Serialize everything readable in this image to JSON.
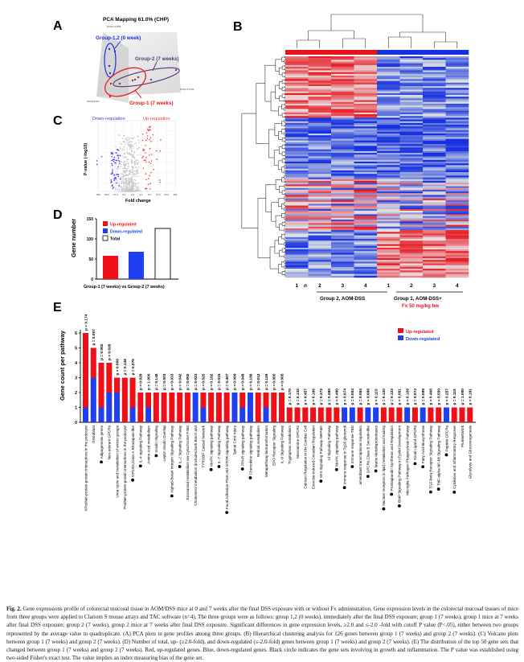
{
  "panel_letters": {
    "a": "A",
    "b": "B",
    "c": "C",
    "d": "D",
    "e": "E"
  },
  "panel_a": {
    "title": "PCA Mapping 61.0% (CHP)",
    "axis_pca1": "PCA1 37.4%",
    "axis_pca2": "PCA2 13.8%",
    "axis_pca3": "PCA3 9.8%",
    "group_0wk": "Group-1,2 (0 week)",
    "group_2": "Group-2 (7 weeks)",
    "group_1": "Group-1 (7 weeks)",
    "colors": {
      "group_0wk": "#1f2fe0",
      "group_2": "#5a3a7a",
      "group_1": "#e8141c"
    }
  },
  "panel_c": {
    "down_label": "Down-regulation",
    "up_label": "Up-regulation",
    "ylabel": "P-value (-log10)",
    "xlabel": "Fold change",
    "xticks": [
      "-256",
      "-66.3",
      "-27.9",
      "-6.2",
      "-3.0",
      "3.0",
      "6.2",
      "27.9",
      "64.3",
      "256"
    ]
  },
  "panel_b": {
    "n_label": "n",
    "columns": [
      "1",
      "2",
      "3",
      "4",
      "1",
      "2",
      "3",
      "4"
    ],
    "group2_label": "Group 2, AOM-DSS",
    "group1_label": "Group 1, AOM-DSS+",
    "group1_sublabel": "Fx 50 mg/kg bw",
    "colors": {
      "up": "#e8141c",
      "down": "#1430e0"
    }
  },
  "chart_data": [
    {
      "type": "bar",
      "panel": "D",
      "categories": [
        "Up-regulated",
        "Down-regulated",
        "Total"
      ],
      "values": [
        58,
        68,
        126
      ],
      "colors": [
        "#f00f17",
        "#1f3ff0",
        "#ffffff"
      ],
      "ylabel": "Gene number",
      "xlabel": "Group-1 (7 weeks) vs Group-2 (7 weeks)",
      "ylim": [
        0,
        150
      ],
      "yticks": [
        "0",
        "50",
        "100",
        "150"
      ],
      "legend": [
        "Up-regulated",
        "Down-regulated",
        "Total"
      ],
      "legend_position": "top-left"
    },
    {
      "type": "bar",
      "stacked": true,
      "panel": "E",
      "ylabel": "Gene count per pathway",
      "ylim": [
        0,
        6
      ],
      "yticks": [
        "0",
        "1",
        "2",
        "3",
        "4",
        "5",
        "6"
      ],
      "legend": [
        "Up-regulated",
        "Down-regulated"
      ],
      "legend_position": "top-right",
      "colors": {
        "up": "#f00f17",
        "down": "#1f3ff0"
      },
      "bars": [
        {
          "label": "XPodNet-protein-protein interactions in the podocyte",
          "up": 5,
          "down": 1,
          "p": "p = 0.174",
          "dot": false
        },
        {
          "label": "Osteoblast",
          "up": 2,
          "down": 3,
          "p": "p = 0.007",
          "dot": false
        },
        {
          "label": "Adipogenesis genes",
          "up": 3,
          "down": 1,
          "p": "p = 0.002",
          "dot": true
        },
        {
          "label": "Non-odorant GPCRs",
          "up": 2,
          "down": 2,
          "p": "p = 0.028",
          "dot": false
        },
        {
          "label": "Urea cycle and metabolism of amino groups",
          "up": 1,
          "down": 2,
          "p": "p = 0.000",
          "dot": false
        },
        {
          "label": "PodNet-protein-protein interactions in the podocyte",
          "up": 3,
          "down": 0,
          "p": "p = 0.148",
          "dot": false
        },
        {
          "label": "GPCRs,Class A Rhodopsin-like",
          "up": 2,
          "down": 1,
          "p": "p = 0.076",
          "dot": true
        },
        {
          "label": "IL-4 signaling Pathway",
          "up": 2,
          "down": 0,
          "p": "p = 0.028",
          "dot": true
        },
        {
          "label": "Amino Acid metabolism",
          "up": 1,
          "down": 1,
          "p": "p = 1.000",
          "dot": false
        },
        {
          "label": "Insulin Signaling",
          "up": 2,
          "down": 0,
          "p": "p = 0.148",
          "dot": true
        },
        {
          "label": "Leptin Insulin Overlap",
          "up": 2,
          "down": 0,
          "p": "p = 0.003",
          "dot": false
        },
        {
          "label": "Alpha6-Beta4 Integrin Signaling Pathway",
          "up": 2,
          "down": 0,
          "p": "p = 0.033",
          "dot": true
        },
        {
          "label": "IL-2 Signaling Pathway",
          "up": 2,
          "down": 0,
          "p": "p = 0.042",
          "dot": true
        },
        {
          "label": "Eicosanoid metabolism via Cytochrome P450",
          "up": 2,
          "down": 0,
          "p": "p = 0.002",
          "dot": false
        },
        {
          "label": "Cholesterol metabolism (includes both Bloch and",
          "up": 0,
          "down": 2,
          "p": "p = 0.023",
          "dot": false
        },
        {
          "label": "TYROBP Causal Network",
          "up": 1,
          "down": 1,
          "p": "p = 0.025",
          "dot": false
        },
        {
          "label": "MAPK signaling pathway",
          "up": 2,
          "down": 0,
          "p": "p = 0.162",
          "dot": true
        },
        {
          "label": "IL-7 Signaling Pathway",
          "up": 2,
          "down": 0,
          "p": "p = 0.015",
          "dot": true
        },
        {
          "label": "Focal Adhesion-PI3K-Akt-mTOR-signaling pathway",
          "up": 2,
          "down": 0,
          "p": "p = 0.407",
          "dot": true
        },
        {
          "label": "Spinal Cord Injury",
          "up": 0,
          "down": 2,
          "p": "p = 0.069",
          "dot": false
        },
        {
          "label": "PPAR signaling pathway",
          "up": 1,
          "down": 1,
          "p": "p = 0.048",
          "dot": true
        },
        {
          "label": "Chemokine signaling pathway",
          "up": 0,
          "down": 2,
          "p": "p = 0.186",
          "dot": true
        },
        {
          "label": "Retinol metabolism",
          "up": 2,
          "down": 0,
          "p": "p = 0.012",
          "dot": false
        },
        {
          "label": "Metapathway biotransformation",
          "up": 1,
          "down": 1,
          "p": "p = 0.126",
          "dot": false
        },
        {
          "label": "EPO Receptor Signaling",
          "up": 2,
          "down": 0,
          "p": "p = 0.005",
          "dot": false
        },
        {
          "label": "IL-9 Signaling Pathway",
          "up": 2,
          "down": 0,
          "p": "p = 0.005",
          "dot": false
        },
        {
          "label": "Tryptophan metabolism",
          "up": 1,
          "down": 0,
          "p": "p = 0.170",
          "dot": false
        },
        {
          "label": "Monoamine GPCRs",
          "up": 1,
          "down": 0,
          "p": "p = 0.132",
          "dot": false
        },
        {
          "label": "Calcium Regulation in the Cardiac Cell",
          "up": 1,
          "down": 0,
          "p": "p = 0.457",
          "dot": false
        },
        {
          "label": "Exercise-induced Circadian Regulation",
          "up": 1,
          "down": 0,
          "p": "p = 0.186",
          "dot": false
        },
        {
          "label": "Wnt Signaling Pathway NetPath",
          "up": 1,
          "down": 0,
          "p": "p = 0.372",
          "dot": true
        },
        {
          "label": "Id Signaling Pathway",
          "up": 1,
          "down": 0,
          "p": "p = 0.280",
          "dot": false
        },
        {
          "label": "MAPK signaling pathway",
          "up": 1,
          "down": 0,
          "p": "p = 0.490",
          "dot": true
        },
        {
          "label": "Immune response in Tg26 glomeruli",
          "up": 0,
          "down": 1,
          "p": "p = 0.074",
          "dot": true
        },
        {
          "label": "Immune response TBD",
          "up": 0,
          "down": 1,
          "p": "p = 0.054",
          "dot": true
        },
        {
          "label": "ameloblast transcriptional regulation",
          "up": 1,
          "down": 0,
          "p": "p = 0.084",
          "dot": false
        },
        {
          "label": "GPCRs,Class B Secretin-like",
          "up": 0,
          "down": 1,
          "p": "p = 0.089",
          "dot": true
        },
        {
          "label": "Matrix Metalloproteinases",
          "up": 0,
          "down": 1,
          "p": "p = 0.115",
          "dot": true
        },
        {
          "label": "Nuclear receptors in lipid metabolism and toxicity",
          "up": 1,
          "down": 0,
          "p": "p = 0.120",
          "dot": true
        },
        {
          "label": "Prostaglandin Synthesis and Regulation",
          "up": 1,
          "down": 0,
          "p": "p = 0.123",
          "dot": true
        },
        {
          "label": "BMP Signaling Pathway in Eyelid Development",
          "up": 1,
          "down": 0,
          "p": "p = 0.081",
          "dot": true
        },
        {
          "label": "Microglia Pathogen Phagocytosis Pathway",
          "up": 0,
          "down": 1,
          "p": "p = 0.158",
          "dot": false
        },
        {
          "label": "Small Ligand GPCRs",
          "up": 1,
          "down": 0,
          "p": "p = 0.074",
          "dot": true
        },
        {
          "label": "Fatty Acid Biosynthesis",
          "up": 0,
          "down": 1,
          "p": "p = 0.089",
          "dot": true
        },
        {
          "label": "TGF-beta Receptor Signaling Pathway",
          "up": 1,
          "down": 0,
          "p": "p = 0.468",
          "dot": true
        },
        {
          "label": "TNF-alpha NF-kB Signaling Pathway",
          "up": 1,
          "down": 0,
          "p": "p = 0.550",
          "dot": true
        },
        {
          "label": "Peptide GPCRs",
          "up": 0,
          "down": 1,
          "p": "p = 0.257",
          "dot": true
        },
        {
          "label": "Cytokines and Inflammatory Response",
          "up": 1,
          "down": 0,
          "p": "p = 0.115",
          "dot": true
        },
        {
          "label": "PluriNetWork",
          "up": 1,
          "down": 0,
          "p": "p = 1.000",
          "dot": false
        },
        {
          "label": "Glycolysis and Gluconeogenesis",
          "up": 1,
          "down": 0,
          "p": "p = 0.191",
          "dot": false
        }
      ]
    }
  ],
  "caption": {
    "fig_label": "Fig. 2.",
    "text": "Gene expressions profile of colorectal mucosal tissue in AOM/DSS mice at 0 and 7 weeks after the final DSS exposure with or without Fx administration. Gene expression levels in the colorectal mucosal tissues of mice from three groups were applied to Clariom S mouse arrays and TAC software (n=4). The three groups were as follows: group 1,2 (0 weeks), immediately after the final DSS exposure; group 1 (7 weeks), group 1 mice at 7 weeks after final DSS exposure; group 2 (7 weeks), group 2 mice at 7 weeks after final DSS exposure. Significant differences in gene expression levels, ≥2.0 and ≤-2.0 -fold with cutoff P value (P<.05), either between two groups represented by the average value in quadruplicate. (A) PCA plots in gene profiles among three groups. (B) Hierarchical clustering analysis for 126 genes between group 1 (7 weeks) and group 2 (7 weeks). (C) Volcano plots between group 1 (7 weeks) and group 2 (7 weeks). (D) Number of total, up- (≥2.0-fold), and down-regulated (≤-2.0-fold) genes between group 1 (7 weeks) and group 2 (7 weeks). (E) The distribution of the top 50 gene sets that changed between group 1 (7 weeks) and group 2 (7 weeks). Red, up-regulated genes. Blue, down-regulated genes. Black circle indicates the gene sets involving in growth and inflammation. The P value was established using two-sided Fisher's exact test. The value implies an index measuring bias of the gene set."
  }
}
